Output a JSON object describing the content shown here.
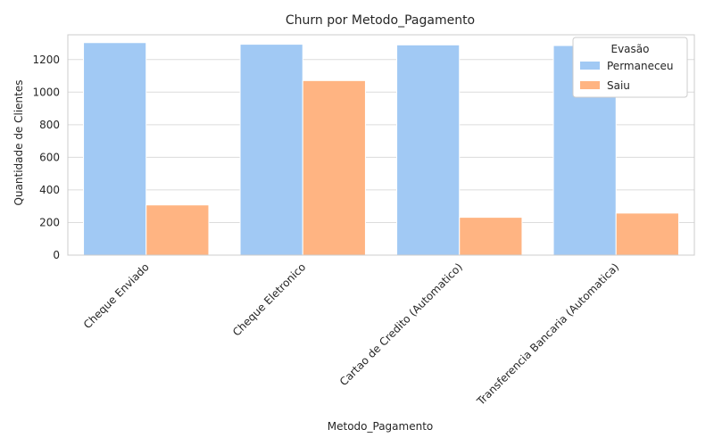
{
  "chart_data": {
    "type": "bar",
    "title": "Churn por Metodo_Pagamento",
    "xlabel": "Metodo_Pagamento",
    "ylabel": "Quantidade de Clientes",
    "categories": [
      "Cheque Enviado",
      "Cheque Eletronico",
      "Cartao de Credito (Automatico)",
      "Transferencia Bancaria (Automatica)"
    ],
    "series": [
      {
        "name": "Permaneceu",
        "color": "#a1c9f4",
        "values": [
          1304,
          1294,
          1290,
          1286
        ]
      },
      {
        "name": "Saiu",
        "color": "#ffb482",
        "values": [
          308,
          1071,
          232,
          258
        ]
      }
    ],
    "ylim": [
      0,
      1352
    ],
    "yticks": [
      0,
      200,
      400,
      600,
      800,
      1000,
      1200
    ],
    "grid": true,
    "legend": {
      "title": "Evasão",
      "placement": "top-right"
    }
  }
}
